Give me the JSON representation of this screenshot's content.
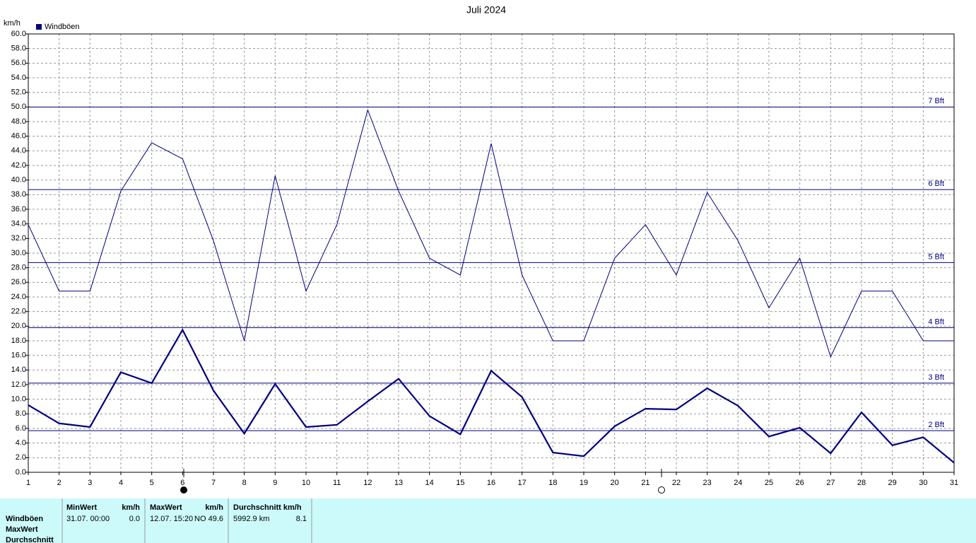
{
  "chart_data": {
    "type": "line",
    "title": "Juli 2024",
    "y_label": "km/h",
    "x": [
      1,
      2,
      3,
      4,
      5,
      6,
      7,
      8,
      9,
      10,
      11,
      12,
      13,
      14,
      15,
      16,
      17,
      18,
      19,
      20,
      21,
      22,
      23,
      24,
      25,
      26,
      27,
      28,
      29,
      30,
      31
    ],
    "xlim": [
      1,
      31
    ],
    "xticks": [
      1,
      2,
      3,
      4,
      5,
      6,
      7,
      8,
      9,
      10,
      11,
      12,
      13,
      14,
      15,
      16,
      17,
      18,
      19,
      20,
      21,
      22,
      23,
      24,
      25,
      26,
      27,
      28,
      29,
      30,
      31
    ],
    "ylim": [
      0,
      60
    ],
    "yticks": [
      {
        "value": 0,
        "label": "0.0"
      },
      {
        "value": 2,
        "label": "2.0"
      },
      {
        "value": 4,
        "label": "4.0"
      },
      {
        "value": 6,
        "label": "6.0"
      },
      {
        "value": 8,
        "label": "8.0"
      },
      {
        "value": 10,
        "label": "10.0"
      },
      {
        "value": 12,
        "label": "12.0"
      },
      {
        "value": 14,
        "label": "14.0"
      },
      {
        "value": 16,
        "label": "16.0"
      },
      {
        "value": 18,
        "label": "18.0"
      },
      {
        "value": 20,
        "label": "20.0"
      },
      {
        "value": 22,
        "label": "22.0"
      },
      {
        "value": 24,
        "label": "24.0"
      },
      {
        "value": 26,
        "label": "26.0"
      },
      {
        "value": 28,
        "label": "28.0"
      },
      {
        "value": 30,
        "label": "30.0"
      },
      {
        "value": 32,
        "label": "32.0"
      },
      {
        "value": 34,
        "label": "34.0"
      },
      {
        "value": 36,
        "label": "36.0"
      },
      {
        "value": 38,
        "label": "38.0"
      },
      {
        "value": 40,
        "label": "40.0"
      },
      {
        "value": 42,
        "label": "42.0"
      },
      {
        "value": 44,
        "label": "44.0"
      },
      {
        "value": 46,
        "label": "46.0"
      },
      {
        "value": 48,
        "label": "48.0"
      },
      {
        "value": 50,
        "label": "50.0"
      },
      {
        "value": 52,
        "label": "52.0"
      },
      {
        "value": 54,
        "label": "54.0"
      },
      {
        "value": 56,
        "label": "56.0"
      },
      {
        "value": 58,
        "label": "58.0"
      },
      {
        "value": 60,
        "label": "60.0"
      }
    ],
    "grid": true,
    "series": [
      {
        "name": "Windböen",
        "color": "#000080",
        "values": [
          33.9,
          24.8,
          24.8,
          38.5,
          45.1,
          42.9,
          31.7,
          18.0,
          40.6,
          24.8,
          33.9,
          49.6,
          38.5,
          29.3,
          27.0,
          45.0,
          27.0,
          18.0,
          18.0,
          29.3,
          33.9,
          27.0,
          38.3,
          31.7,
          22.5,
          29.3,
          15.8,
          24.8,
          24.8,
          18.0,
          18.0
        ]
      },
      {
        "color": "#000080",
        "values": [
          9.2,
          6.7,
          6.2,
          13.7,
          12.2,
          19.5,
          11.2,
          5.3,
          12.1,
          6.2,
          6.5,
          9.7,
          12.8,
          7.7,
          5.2,
          13.9,
          10.3,
          2.7,
          2.2,
          6.3,
          8.7,
          8.6,
          11.5,
          9.1,
          4.9,
          6.1,
          2.6,
          8.2,
          3.7,
          4.8,
          1.3
        ]
      }
    ],
    "bft_lines": [
      {
        "label": "7 Bft",
        "value": 50
      },
      {
        "label": "6 Bft",
        "value": 38.7
      },
      {
        "label": "5 Bft",
        "value": 28.7
      },
      {
        "label": "4 Bft",
        "value": 19.8
      },
      {
        "label": "3 Bft",
        "value": 12.2
      },
      {
        "label": "2 Bft",
        "value": 5.7
      }
    ]
  },
  "stats": {
    "row_labels": [
      "Windböen",
      "MaxWert",
      "Durchschnitt"
    ],
    "columns": [
      {
        "header": "MinWert",
        "unit": "km/h",
        "when": "31.07.  00:00",
        "value": "0.0"
      },
      {
        "header": "MaxWert",
        "unit": "km/h",
        "when": "12.07.  15:20",
        "value": "NO 49.6"
      },
      {
        "header": "Durchschnitt km/h",
        "when": "5992.9 km",
        "value": "8.1"
      }
    ]
  }
}
